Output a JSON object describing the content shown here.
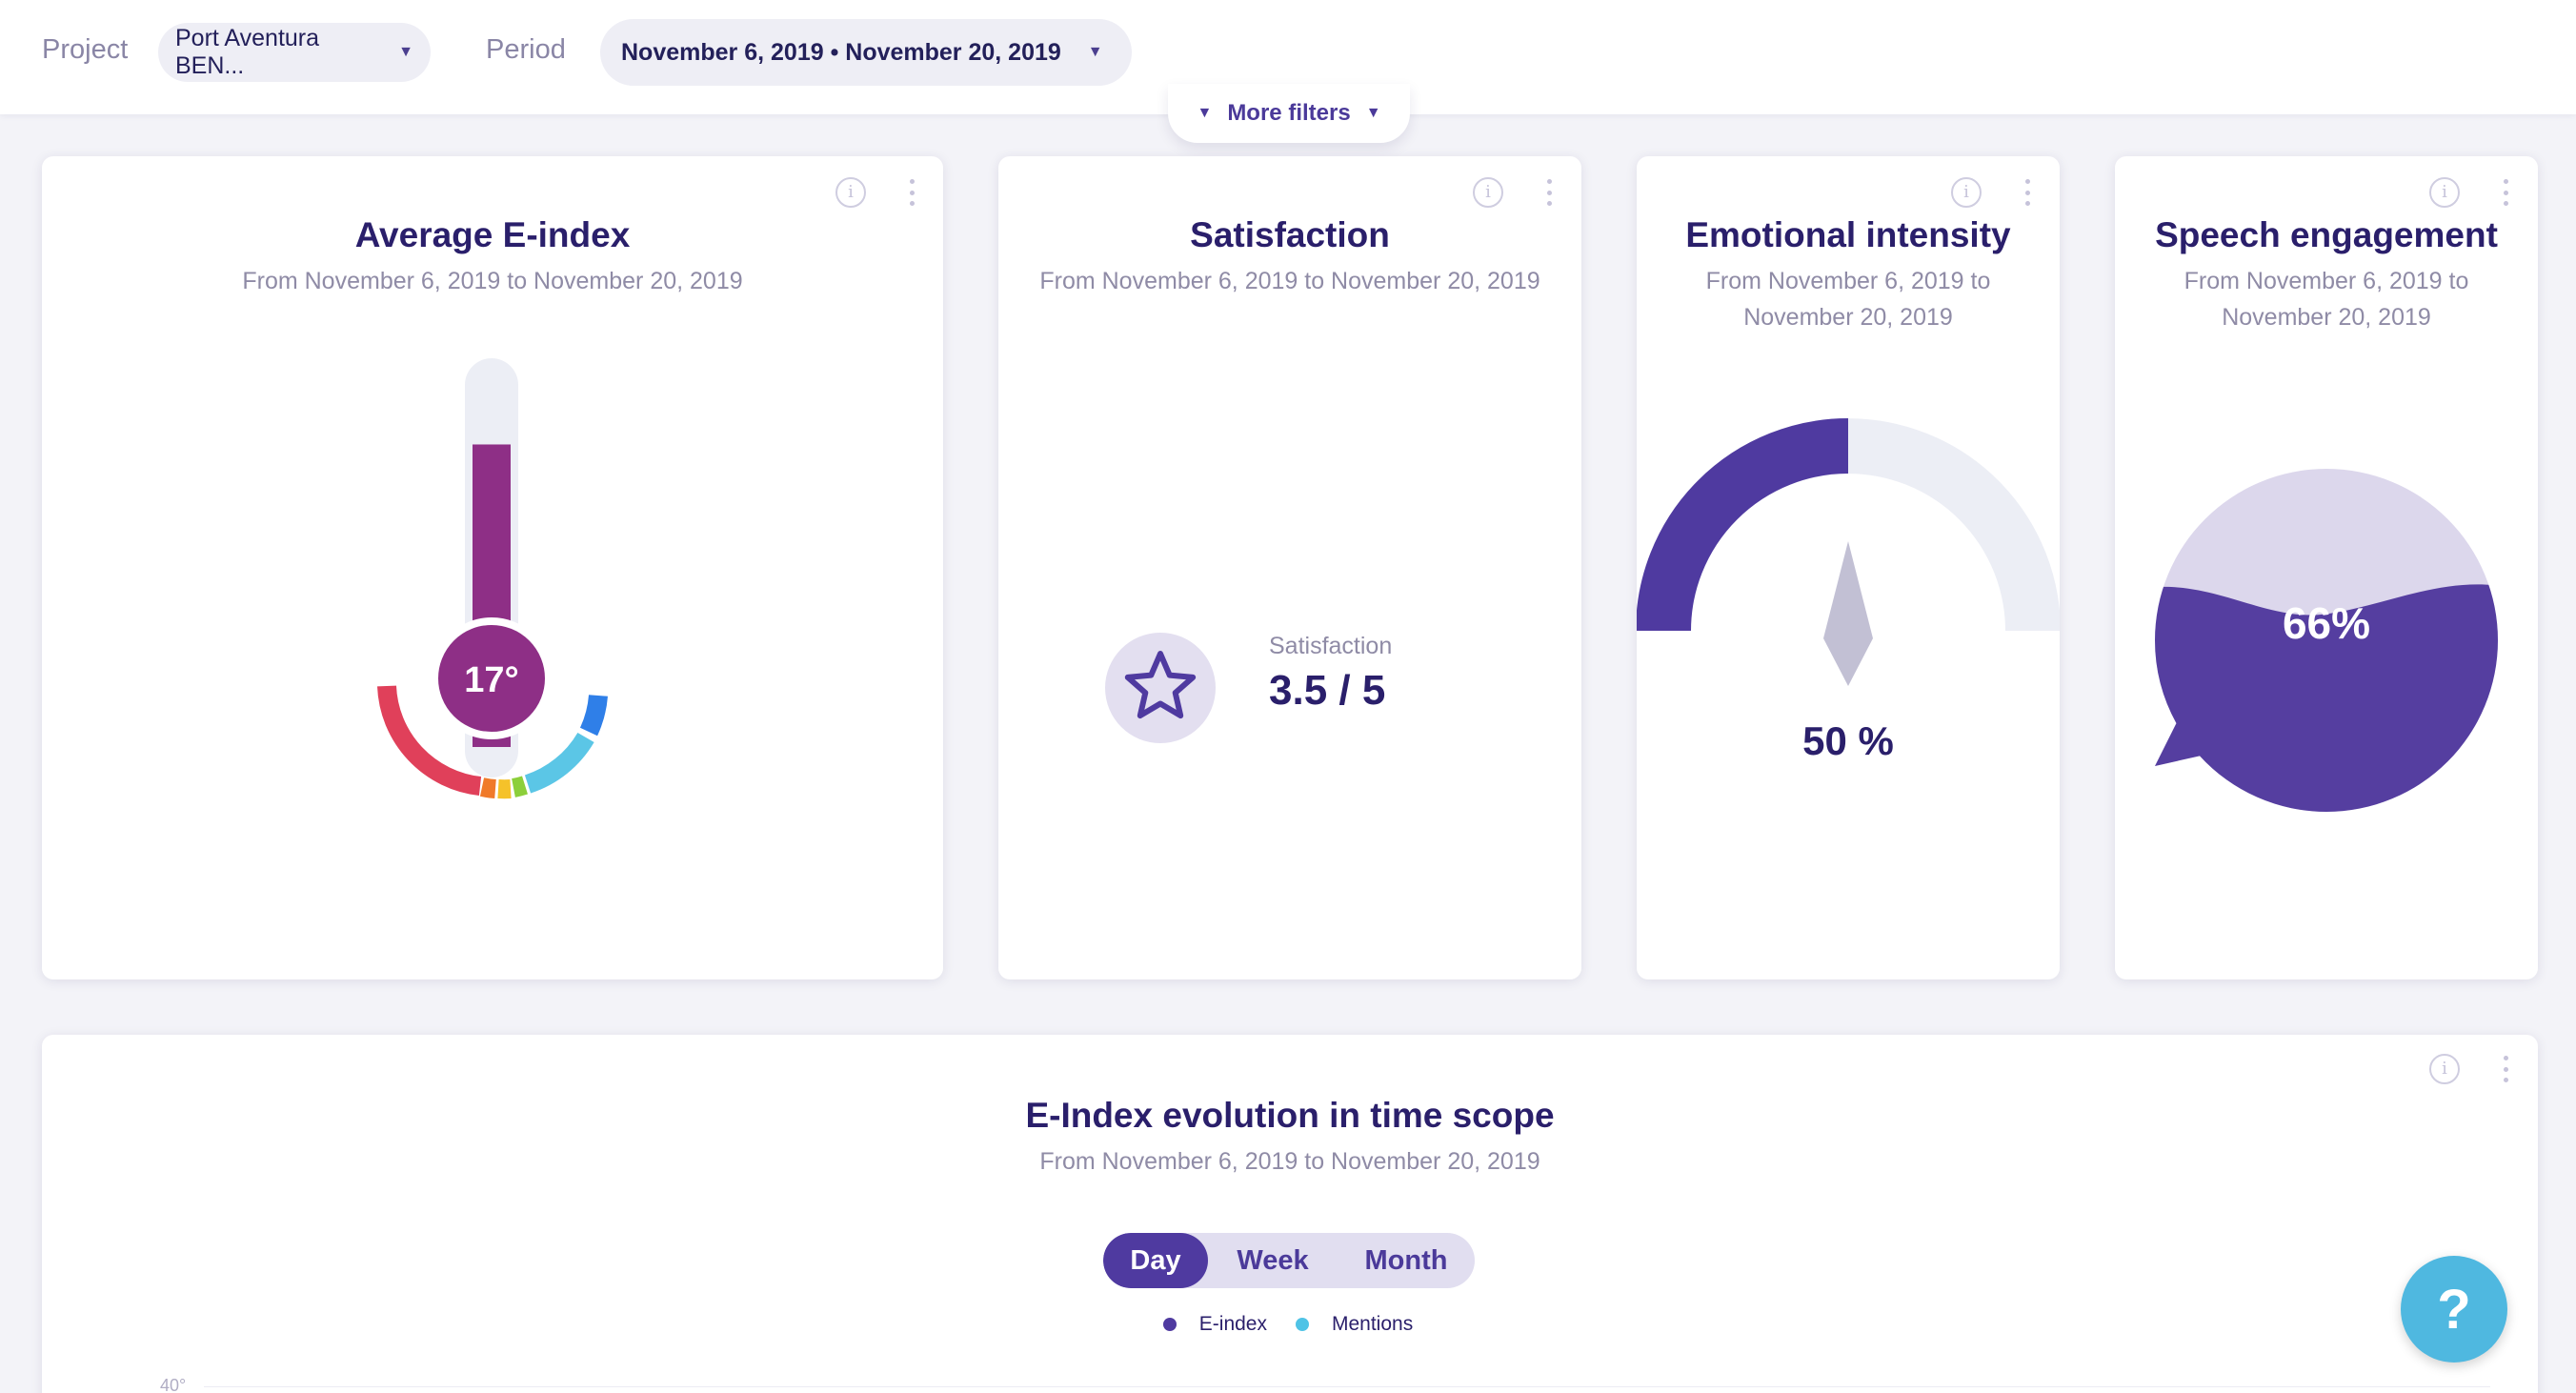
{
  "filters": {
    "project_label": "Project",
    "project_value": "Port Aventura BEN...",
    "period_label": "Period",
    "period_value": "November 6, 2019 • November 20, 2019",
    "more_filters": "More filters"
  },
  "cards": {
    "eindex": {
      "title": "Average E-index",
      "subtitle": "From November 6, 2019 to November 20, 2019",
      "value": "17°",
      "fill_fraction": 0.74
    },
    "satisfaction": {
      "title": "Satisfaction",
      "subtitle": "From November 6, 2019 to November 20, 2019",
      "label": "Satisfaction",
      "value": "3.5 / 5"
    },
    "emotional": {
      "title": "Emotional intensity",
      "subtitle": "From November 6, 2019 to November 20, 2019",
      "value": "50 %",
      "fraction": 0.5
    },
    "speech": {
      "title": "Speech engagement",
      "subtitle": "From November 6, 2019 to November 20, 2019",
      "value": "66%",
      "fraction": 0.66
    }
  },
  "evolution": {
    "title": "E-Index evolution in time scope",
    "subtitle": "From November 6, 2019 to November 20, 2019",
    "tabs": [
      "Day",
      "Week",
      "Month"
    ],
    "active_tab": "Day",
    "legend": [
      {
        "name": "E-index",
        "color": "#4f3aa0"
      },
      {
        "name": "Mentions",
        "color": "#4fc3e6"
      }
    ],
    "y_tick": "40°"
  },
  "colors": {
    "accent": "#4f3aa0",
    "thermo": "#8e2f86",
    "help": "#4fb8e0"
  },
  "help_label": "?"
}
